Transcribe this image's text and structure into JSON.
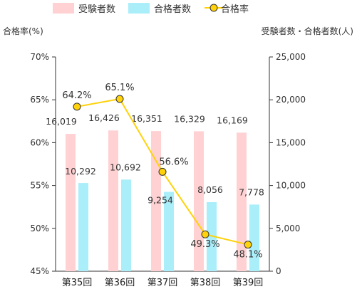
{
  "legend": {
    "applicants_label": "受験者数",
    "passers_label": "合格者数",
    "rate_label": "合格率"
  },
  "colors": {
    "applicants": "#ffd1d3",
    "passers": "#aaeefa",
    "rate_line": "#ffd20a",
    "rate_marker_fill": "#ffd20a",
    "rate_marker_stroke": "#333333",
    "axis": "#333333"
  },
  "chart_data": {
    "type": "bar",
    "categories": [
      "第35回",
      "第36回",
      "第37回",
      "第38回",
      "第39回"
    ],
    "series": [
      {
        "name": "受験者数",
        "type": "bar",
        "axis": "right",
        "values": [
          16019,
          16426,
          16351,
          16329,
          16169
        ],
        "labels": [
          "16,019",
          "16,426",
          "16,351",
          "16,329",
          "16,169"
        ]
      },
      {
        "name": "合格者数",
        "type": "bar",
        "axis": "right",
        "values": [
          10292,
          10692,
          9254,
          8056,
          7778
        ],
        "labels": [
          "10,292",
          "10,692",
          "9,254",
          "8,056",
          "7,778"
        ]
      },
      {
        "name": "合格率",
        "type": "line",
        "axis": "left",
        "values": [
          64.2,
          65.1,
          56.6,
          49.3,
          48.1
        ],
        "labels": [
          "64.2%",
          "65.1%",
          "56.6%",
          "49.3%",
          "48.1%"
        ]
      }
    ],
    "y_left": {
      "label": "合格率(%)",
      "range": [
        45,
        70
      ],
      "ticks": [
        45,
        50,
        55,
        60,
        65,
        70
      ],
      "tick_labels": [
        "45%",
        "50%",
        "55%",
        "60%",
        "65%",
        "70%"
      ]
    },
    "y_right": {
      "label": "受験者数・合格者数(人)",
      "range": [
        0,
        25000
      ],
      "ticks": [
        0,
        5000,
        10000,
        15000,
        20000,
        25000
      ],
      "tick_labels": [
        "0",
        "5,000",
        "10,000",
        "15,000",
        "20,000",
        "25,000"
      ]
    },
    "grid": false,
    "legend_position": "top"
  }
}
